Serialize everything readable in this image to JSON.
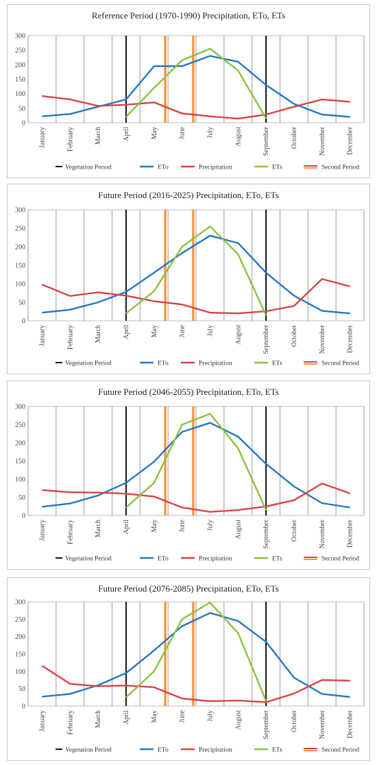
{
  "colors": {
    "eto": "#2377c4",
    "precipitation": "#d94343",
    "ets": "#8cc13f",
    "vegetation": "#111111",
    "second": "#f0984a",
    "grid": "#9a9a9a"
  },
  "legend": {
    "vegetation": "Vegetation Period",
    "eto": "ETo",
    "precipitation": "Precipitation",
    "ets": "ETs",
    "second": "Second Period"
  },
  "chart_data": [
    {
      "type": "line",
      "title": "Reference Period (1970-1990) Precipitation, ETo, ETs",
      "categories": [
        "January",
        "February",
        "March",
        "April",
        "May",
        "June",
        "July",
        "August",
        "September",
        "October",
        "November",
        "December"
      ],
      "ylim": [
        0,
        300
      ],
      "yticks": [
        0,
        50,
        100,
        150,
        200,
        250,
        300
      ],
      "series": [
        {
          "name": "ETo",
          "values": [
            22,
            30,
            55,
            80,
            195,
            195,
            230,
            210,
            130,
            65,
            28,
            20
          ]
        },
        {
          "name": "Precipitation",
          "values": [
            92,
            80,
            58,
            62,
            70,
            32,
            22,
            14,
            28,
            55,
            80,
            72
          ]
        },
        {
          "name": "ETs",
          "values": [
            null,
            null,
            null,
            20,
            120,
            215,
            255,
            180,
            15,
            null,
            null,
            null
          ]
        }
      ],
      "vegetation_period": [
        "April",
        "September"
      ],
      "second_period": [
        "May",
        "June"
      ],
      "grid": true,
      "legend_position": "bottom"
    },
    {
      "type": "line",
      "title": "Future Period (2016-2025) Precipitation, ETo, ETs",
      "categories": [
        "January",
        "February",
        "March",
        "April",
        "May",
        "June",
        "July",
        "August",
        "September",
        "October",
        "November",
        "December"
      ],
      "ylim": [
        0,
        300
      ],
      "yticks": [
        0,
        50,
        100,
        150,
        200,
        250,
        300
      ],
      "series": [
        {
          "name": "ETo",
          "values": [
            22,
            30,
            50,
            78,
            130,
            183,
            230,
            210,
            130,
            68,
            27,
            20
          ]
        },
        {
          "name": "Precipitation",
          "values": [
            98,
            67,
            77,
            68,
            53,
            44,
            22,
            20,
            26,
            40,
            113,
            93
          ]
        },
        {
          "name": "ETs",
          "values": [
            null,
            null,
            null,
            20,
            80,
            200,
            255,
            180,
            15,
            null,
            null,
            null
          ]
        }
      ],
      "vegetation_period": [
        "April",
        "September"
      ],
      "second_period": [
        "May",
        "June"
      ],
      "grid": true,
      "legend_position": "bottom"
    },
    {
      "type": "line",
      "title": "Future Period (2046-2055) Precipitation, ETo, ETs",
      "categories": [
        "January",
        "February",
        "March",
        "April",
        "May",
        "June",
        "July",
        "August",
        "September",
        "October",
        "November",
        "December"
      ],
      "ylim": [
        0,
        300
      ],
      "yticks": [
        0,
        50,
        100,
        150,
        200,
        250,
        300
      ],
      "series": [
        {
          "name": "ETo",
          "values": [
            24,
            33,
            55,
            90,
            148,
            230,
            255,
            217,
            142,
            80,
            34,
            22
          ]
        },
        {
          "name": "Precipitation",
          "values": [
            70,
            64,
            63,
            60,
            52,
            22,
            10,
            15,
            25,
            42,
            88,
            61
          ]
        },
        {
          "name": "ETs",
          "values": [
            null,
            null,
            null,
            22,
            90,
            250,
            280,
            185,
            15,
            null,
            null,
            null
          ]
        }
      ],
      "vegetation_period": [
        "April",
        "September"
      ],
      "second_period": [
        "May",
        "June"
      ],
      "grid": true,
      "legend_position": "bottom"
    },
    {
      "type": "line",
      "title": "Future Period (2076-2085) Precipitation, ETo, ETs",
      "categories": [
        "January",
        "February",
        "March",
        "April",
        "May",
        "June",
        "July",
        "August",
        "September",
        "October",
        "November",
        "December"
      ],
      "ylim": [
        0,
        300
      ],
      "yticks": [
        0,
        50,
        100,
        150,
        200,
        250,
        300
      ],
      "series": [
        {
          "name": "ETo",
          "values": [
            27,
            35,
            60,
            95,
            160,
            230,
            268,
            245,
            185,
            82,
            35,
            26
          ]
        },
        {
          "name": "Precipitation",
          "values": [
            116,
            64,
            57,
            59,
            54,
            22,
            14,
            16,
            11,
            36,
            75,
            73
          ]
        },
        {
          "name": "ETs",
          "values": [
            null,
            null,
            null,
            25,
            100,
            250,
            298,
            210,
            15,
            null,
            null,
            null
          ]
        }
      ],
      "vegetation_period": [
        "April",
        "September"
      ],
      "second_period": [
        "May",
        "June"
      ],
      "grid": true,
      "legend_position": "bottom"
    }
  ]
}
